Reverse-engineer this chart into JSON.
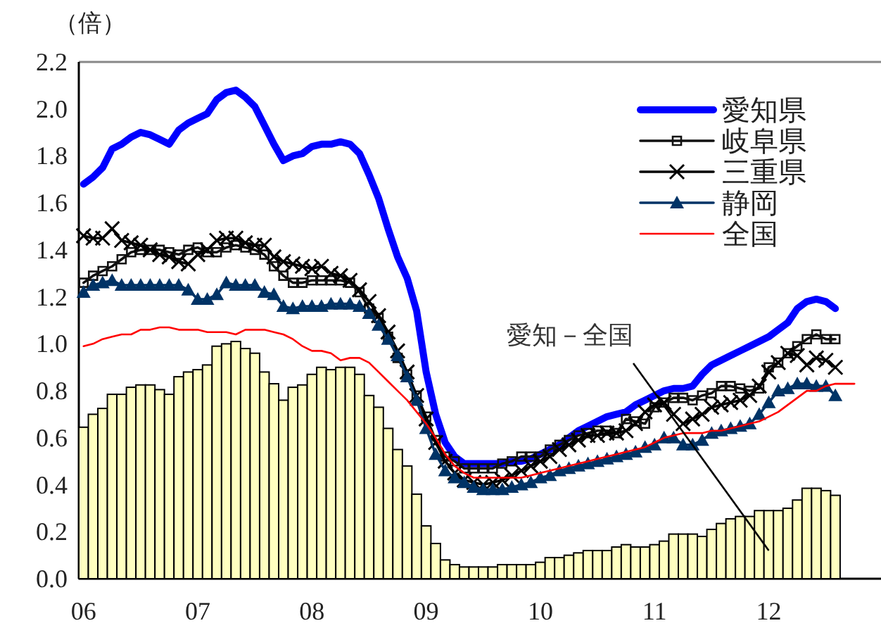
{
  "chart_data": {
    "type": "line",
    "ylabel": "（倍）",
    "categories": [
      "06",
      null,
      null,
      null,
      null,
      null,
      null,
      null,
      null,
      null,
      null,
      null,
      "07",
      null,
      null,
      null,
      null,
      null,
      null,
      null,
      null,
      null,
      null,
      null,
      "08",
      null,
      null,
      null,
      null,
      null,
      null,
      null,
      null,
      null,
      null,
      null,
      "09",
      null,
      null,
      null,
      null,
      null,
      null,
      null,
      null,
      null,
      null,
      null,
      "10",
      null,
      null,
      null,
      null,
      null,
      null,
      null,
      null,
      null,
      null,
      null,
      "11",
      null,
      null,
      null,
      null,
      null,
      null,
      null,
      null,
      null,
      null,
      null,
      "12",
      null,
      null,
      null,
      null,
      null,
      null,
      null,
      null,
      null,
      null,
      null
    ],
    "ylim": [
      0,
      2.2
    ],
    "yticks": [
      {
        "value": 0,
        "label": "0.0"
      },
      {
        "value": 0.2,
        "label": "0.2"
      },
      {
        "value": 0.4,
        "label": "0.4"
      },
      {
        "value": 0.6,
        "label": "0.6"
      },
      {
        "value": 0.8,
        "label": "0.8"
      },
      {
        "value": 1.0,
        "label": "1.0"
      },
      {
        "value": 1.2,
        "label": "1.2"
      },
      {
        "value": 1.4,
        "label": "1.4"
      },
      {
        "value": 1.6,
        "label": "1.6"
      },
      {
        "value": 1.8,
        "label": "1.8"
      },
      {
        "value": 2.0,
        "label": "2.0"
      },
      {
        "value": 2.2,
        "label": "2.2"
      }
    ],
    "legend": "top right",
    "line_style": "solid",
    "annotations": [
      {
        "text": "愛知－全国",
        "x": "12",
        "y": 0.12
      }
    ],
    "series": [
      {
        "type": "bar",
        "color": "#ffffc0",
        "values": [
          0.645,
          0.7,
          0.725,
          0.785,
          0.785,
          0.815,
          0.825,
          0.825,
          0.805,
          0.785,
          0.86,
          0.88,
          0.89,
          0.91,
          0.99,
          1.0,
          1.01,
          0.98,
          0.96,
          0.88,
          0.83,
          0.76,
          0.815,
          0.825,
          0.87,
          0.9,
          0.89,
          0.9,
          0.9,
          0.87,
          0.78,
          0.73,
          0.64,
          0.55,
          0.48,
          0.36,
          0.225,
          0.15,
          0.08,
          0.06,
          0.05,
          0.05,
          0.05,
          0.05,
          0.06,
          0.06,
          0.06,
          0.06,
          0.07,
          0.09,
          0.09,
          0.1,
          0.11,
          0.12,
          0.12,
          0.12,
          0.135,
          0.145,
          0.135,
          0.135,
          0.145,
          0.16,
          0.19,
          0.19,
          0.19,
          0.18,
          0.21,
          0.235,
          0.255,
          0.265,
          0.265,
          0.29,
          0.29,
          0.29,
          0.3,
          0.335,
          0.385,
          0.385,
          0.375,
          0.355,
          null,
          null,
          null,
          null
        ]
      },
      {
        "name": "愛知県",
        "color": "#0000ff",
        "marker": "none",
        "values": [
          1.68,
          1.71,
          1.75,
          1.83,
          1.85,
          1.88,
          1.9,
          1.89,
          1.87,
          1.85,
          1.91,
          1.94,
          1.96,
          1.98,
          2.04,
          2.07,
          2.08,
          2.05,
          2.01,
          1.93,
          1.85,
          1.78,
          1.8,
          1.81,
          1.84,
          1.85,
          1.85,
          1.86,
          1.85,
          1.81,
          1.72,
          1.62,
          1.49,
          1.37,
          1.28,
          1.14,
          0.88,
          0.7,
          0.58,
          0.52,
          0.49,
          0.49,
          0.49,
          0.49,
          0.49,
          0.5,
          0.5,
          0.51,
          0.53,
          0.55,
          0.57,
          0.6,
          0.63,
          0.65,
          0.67,
          0.69,
          0.7,
          0.71,
          0.74,
          0.76,
          0.78,
          0.8,
          0.81,
          0.81,
          0.82,
          0.87,
          0.91,
          0.93,
          0.95,
          0.97,
          0.99,
          1.01,
          1.03,
          1.06,
          1.09,
          1.15,
          1.18,
          1.19,
          1.18,
          1.15,
          null,
          null,
          null,
          null
        ]
      },
      {
        "name": "岐阜県",
        "color": "#111111",
        "marker": "square",
        "values": [
          1.26,
          1.29,
          1.31,
          1.33,
          1.36,
          1.39,
          1.4,
          1.4,
          1.4,
          1.39,
          1.38,
          1.4,
          1.41,
          1.39,
          1.39,
          1.41,
          1.42,
          1.41,
          1.4,
          1.38,
          1.33,
          1.29,
          1.26,
          1.26,
          1.27,
          1.27,
          1.27,
          1.27,
          1.26,
          1.22,
          1.15,
          1.11,
          1.03,
          0.94,
          0.87,
          0.78,
          0.69,
          0.59,
          0.52,
          0.5,
          0.47,
          0.47,
          0.47,
          0.47,
          0.49,
          0.5,
          0.52,
          0.52,
          0.52,
          0.55,
          0.57,
          0.59,
          0.61,
          0.62,
          0.63,
          0.63,
          0.62,
          0.68,
          0.67,
          0.66,
          0.73,
          0.75,
          0.77,
          0.77,
          0.76,
          0.78,
          0.79,
          0.82,
          0.82,
          0.81,
          0.8,
          0.81,
          0.9,
          0.92,
          0.96,
          0.99,
          1.02,
          1.04,
          1.02,
          1.02,
          null,
          null,
          null,
          null
        ]
      },
      {
        "name": "三重県",
        "color": "#000000",
        "marker": "cross",
        "values": [
          1.46,
          1.45,
          1.45,
          1.49,
          1.44,
          1.43,
          1.42,
          1.4,
          1.38,
          1.37,
          1.35,
          1.34,
          1.38,
          1.4,
          1.44,
          1.45,
          1.45,
          1.43,
          1.42,
          1.42,
          1.37,
          1.35,
          1.34,
          1.33,
          1.32,
          1.33,
          1.3,
          1.29,
          1.27,
          1.23,
          1.18,
          1.12,
          1.05,
          0.97,
          0.88,
          0.78,
          0.68,
          0.58,
          0.5,
          0.45,
          0.42,
          0.41,
          0.4,
          0.41,
          0.42,
          0.44,
          0.46,
          0.48,
          0.5,
          0.52,
          0.55,
          0.57,
          0.59,
          0.61,
          0.61,
          0.62,
          0.62,
          0.63,
          0.66,
          0.71,
          0.74,
          0.75,
          0.7,
          0.66,
          0.68,
          0.7,
          0.73,
          0.74,
          0.75,
          0.76,
          0.78,
          0.82,
          0.88,
          0.92,
          0.96,
          0.95,
          0.91,
          0.94,
          0.93,
          0.9,
          null,
          null,
          null,
          null
        ]
      },
      {
        "name": "静岡",
        "color": "#003366",
        "marker": "triangle",
        "values": [
          1.22,
          1.25,
          1.26,
          1.27,
          1.25,
          1.25,
          1.25,
          1.25,
          1.25,
          1.25,
          1.25,
          1.23,
          1.19,
          1.19,
          1.21,
          1.26,
          1.25,
          1.25,
          1.25,
          1.22,
          1.21,
          1.16,
          1.15,
          1.16,
          1.16,
          1.16,
          1.17,
          1.17,
          1.17,
          1.16,
          1.13,
          1.08,
          1.02,
          0.95,
          0.86,
          0.76,
          0.64,
          0.53,
          0.46,
          0.43,
          0.41,
          0.39,
          0.38,
          0.38,
          0.38,
          0.39,
          0.4,
          0.41,
          0.43,
          0.44,
          0.46,
          0.47,
          0.48,
          0.49,
          0.5,
          0.51,
          0.52,
          0.53,
          0.54,
          0.56,
          0.57,
          0.6,
          0.6,
          0.57,
          0.57,
          0.59,
          0.62,
          0.63,
          0.64,
          0.65,
          0.66,
          0.7,
          0.75,
          0.8,
          0.81,
          0.83,
          0.83,
          0.82,
          0.82,
          0.78,
          null,
          null,
          null,
          null
        ]
      },
      {
        "name": "全国",
        "color": "#ff0000",
        "marker": "none",
        "values": [
          0.99,
          1.0,
          1.02,
          1.03,
          1.04,
          1.04,
          1.06,
          1.06,
          1.07,
          1.07,
          1.06,
          1.06,
          1.06,
          1.05,
          1.05,
          1.05,
          1.04,
          1.06,
          1.06,
          1.06,
          1.05,
          1.04,
          1.02,
          0.99,
          0.97,
          0.97,
          0.96,
          0.93,
          0.94,
          0.94,
          0.92,
          0.88,
          0.84,
          0.8,
          0.76,
          0.71,
          0.66,
          0.6,
          0.53,
          0.48,
          0.45,
          0.43,
          0.43,
          0.43,
          0.43,
          0.43,
          0.43,
          0.44,
          0.45,
          0.46,
          0.47,
          0.48,
          0.49,
          0.5,
          0.51,
          0.52,
          0.53,
          0.54,
          0.55,
          0.56,
          0.58,
          0.6,
          0.61,
          0.62,
          0.62,
          0.62,
          0.63,
          0.63,
          0.64,
          0.65,
          0.66,
          0.67,
          0.69,
          0.71,
          0.74,
          0.77,
          0.8,
          0.8,
          0.82,
          0.83,
          0.83,
          0.83,
          null,
          null
        ]
      }
    ]
  }
}
